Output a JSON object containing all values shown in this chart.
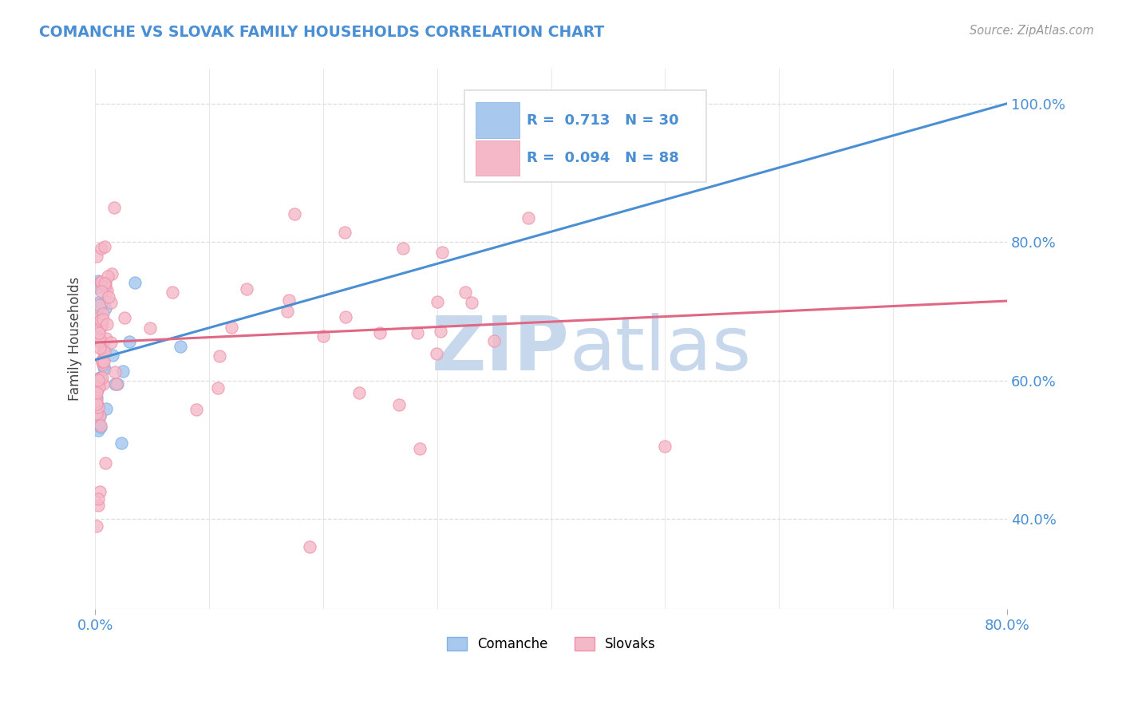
{
  "title": "COMANCHE VS SLOVAK FAMILY HOUSEHOLDS CORRELATION CHART",
  "source_text": "Source: ZipAtlas.com",
  "ylabel": "Family Households",
  "comanche_R": 0.713,
  "comanche_N": 30,
  "slovak_R": 0.094,
  "slovak_N": 88,
  "comanche_color": "#A8C8EE",
  "comanche_edge_color": "#7EB3E8",
  "comanche_line_color": "#4A8FD4",
  "slovak_color": "#F5B8C8",
  "slovak_edge_color": "#EE90A8",
  "slovak_line_color": "#E06885",
  "watermark_color_zip": "#C8D8EC",
  "watermark_color_atlas": "#C8D8EC",
  "title_color": "#4A8FD4",
  "right_axis_color": "#4A8FD4",
  "x_min": 0.0,
  "x_max": 0.8,
  "y_min": 0.27,
  "y_max": 1.05,
  "right_yticks": [
    0.4,
    0.6,
    0.8,
    1.0
  ],
  "right_ytick_labels": [
    "40.0%",
    "60.0%",
    "80.0%",
    "100.0%"
  ],
  "comanche_line_y0": 0.63,
  "comanche_line_y1": 1.0,
  "slovak_line_y0": 0.655,
  "slovak_line_y1": 0.715,
  "background_color": "#FFFFFF",
  "grid_color": "#DDDDDD",
  "legend_R_color": "#4A8FD4",
  "legend_text_color": "#333333"
}
